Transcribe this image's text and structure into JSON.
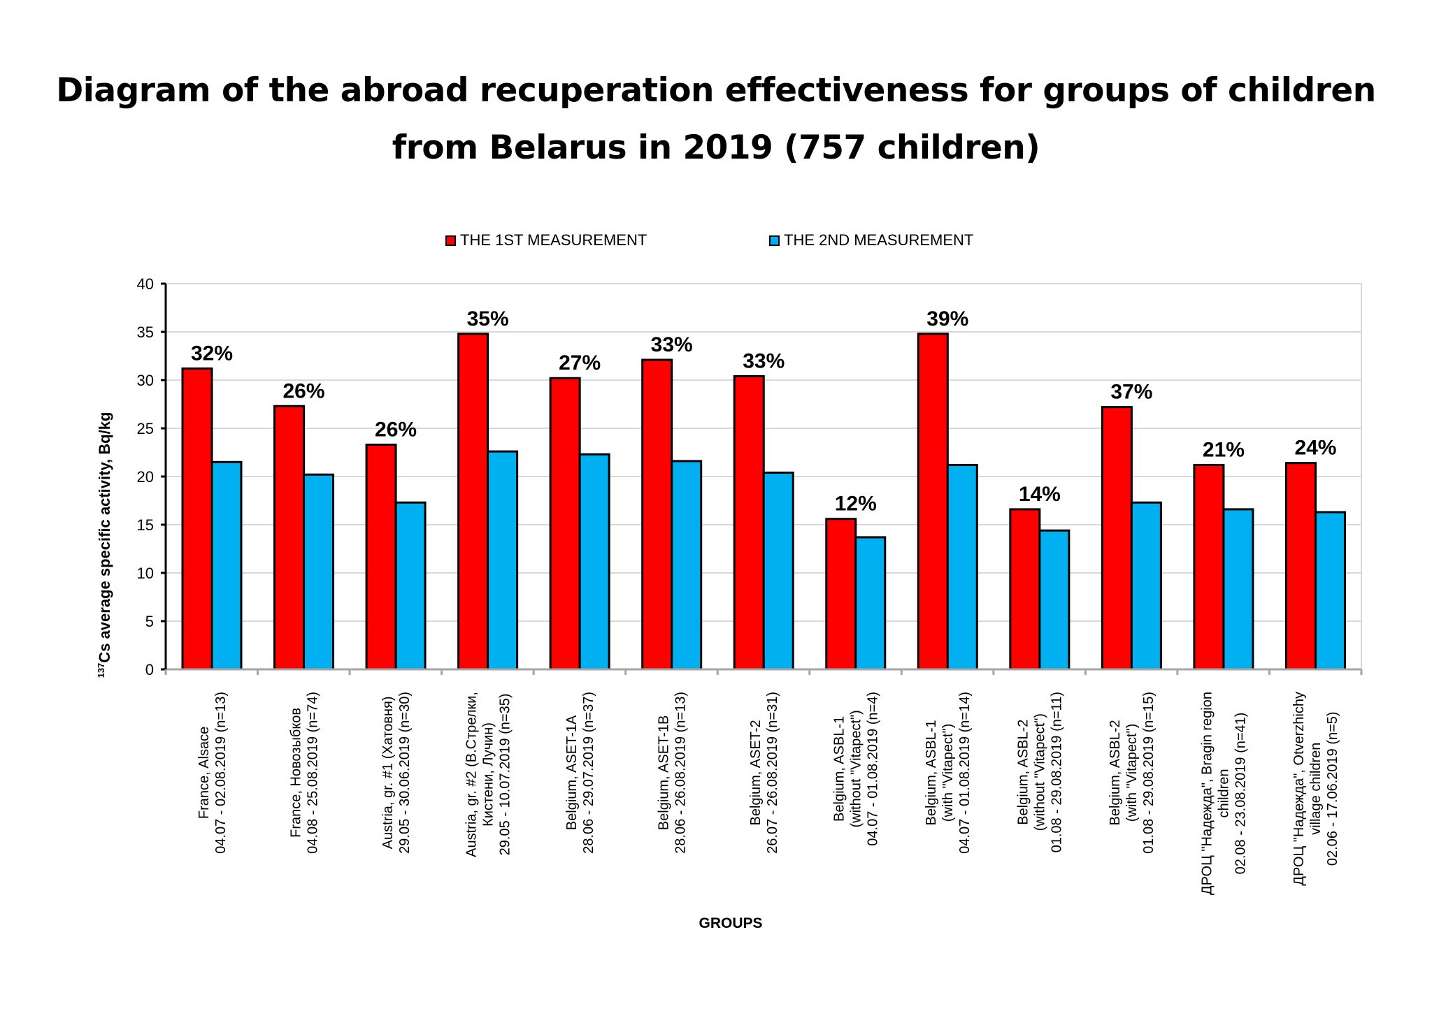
{
  "title_lines": [
    "Diagram of the abroad recuperation effectiveness for groups of children",
    "from Belarus in 2019 (757 children)"
  ],
  "legend": [
    {
      "label": "THE 1ST MEASUREMENT",
      "color": "#ff0000"
    },
    {
      "label": "THE 2ND MEASUREMENT",
      "color": "#00b0f0"
    }
  ],
  "chart_data": {
    "type": "bar",
    "title": "Diagram of the abroad recuperation effectiveness for groups of children from Belarus in 2019 (757 children)",
    "xlabel": "GROUPS",
    "ylabel_sup": "137",
    "ylabel": "Cs average  specific  activity,  Bq/kg",
    "ylim": [
      0,
      40
    ],
    "yticks": [
      "0",
      "5",
      "10",
      "15",
      "20",
      "25",
      "30",
      "35",
      "40"
    ],
    "grid": true,
    "legend_position": "top",
    "categories": [
      [
        "France,  Alsace",
        "04.07 - 02.08.2019 (n=13)"
      ],
      [
        "France,  Новозыбков",
        "04.08  - 25.08.2019   (n=74)"
      ],
      [
        "Austria,  gr. #1 (Хатовня)",
        "29.05  - 30.06.2019   (n=30)"
      ],
      [
        "Austria,  gr. #2 (В.Стрелки,",
        "Кистени,  Лучин)",
        "29.05  - 10.07.2019   (n=35)"
      ],
      [
        "Belgium,   ASET-1A",
        "28.06  - 29.07.2019   (n=37)"
      ],
      [
        "Belgium, ASET-1B",
        "28.06 - 26.08.2019 (n=13)"
      ],
      [
        "Belgium, ASET-2",
        "26.07 - 26.08.2019 (n=31)"
      ],
      [
        "Belgium, ASBL-1",
        "(without \"Vitapect\")",
        "04.07 - 01.08.2019 (n=4)"
      ],
      [
        "Belgium, ASBL-1",
        "(with \"Vitapect\")",
        "04.07 - 01.08.2019 (n=14)"
      ],
      [
        "Belgium, ASBL-2",
        "(without \"Vitapect\")",
        "01.08 - 29.08.2019 (n=11)"
      ],
      [
        "Belgium, ASBL-2",
        "(with \"Vitapect\")",
        "01.08 - 29.08.2019 (n=15)"
      ],
      [
        "ДРОЦ \"Надежда\",  Bragin region",
        "children",
        "02.08  - 23.08.2019   (n=41)"
      ],
      [
        "ДРОЦ \"Надежда\",  Otverzhichy",
        "village children",
        "02.06  - 17.06.2019   (n=5)"
      ]
    ],
    "series": [
      {
        "name": "THE 1ST MEASUREMENT",
        "color": "#ff0000",
        "values": [
          31.2,
          27.3,
          23.3,
          34.8,
          30.2,
          32.1,
          30.4,
          15.6,
          34.8,
          16.6,
          27.2,
          21.2,
          21.4
        ]
      },
      {
        "name": "THE 2ND MEASUREMENT",
        "color": "#00b0f0",
        "values": [
          21.5,
          20.2,
          17.3,
          22.6,
          22.3,
          21.6,
          20.4,
          13.7,
          21.2,
          14.4,
          17.3,
          16.6,
          16.3
        ]
      }
    ],
    "annotations": [
      "32%",
      "26%",
      "26%",
      "35%",
      "27%",
      "33%",
      "33%",
      "12%",
      "39%",
      "14%",
      "37%",
      "21%",
      "24%"
    ]
  }
}
